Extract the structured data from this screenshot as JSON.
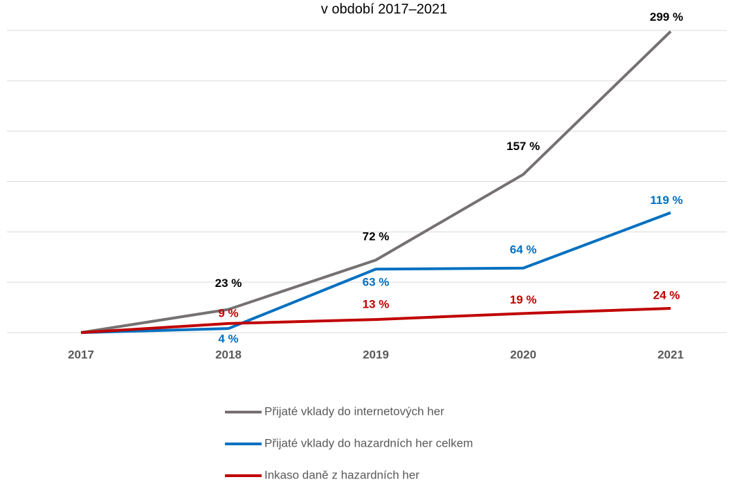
{
  "chart_data": {
    "type": "line",
    "title": "v období 2017–2021",
    "categories": [
      "2017",
      "2018",
      "2019",
      "2020",
      "2021"
    ],
    "ylim": [
      0,
      300
    ],
    "yticks": [
      0,
      50,
      100,
      150,
      200,
      250,
      300
    ],
    "grid": true,
    "series": [
      {
        "name": "Přijaté vklady do internetových her",
        "color": "#767171",
        "label_color": "#000000",
        "values": [
          0,
          23,
          72,
          157,
          299
        ],
        "value_labels": [
          null,
          "23 %",
          "72 %",
          "157 %",
          "299 %"
        ]
      },
      {
        "name": "Přijaté vklady do hazardních her celkem",
        "color": "#0070c0",
        "label_color": "#0070c0",
        "values": [
          0,
          4,
          63,
          64,
          119
        ],
        "value_labels": [
          null,
          "4 %",
          "63 %",
          "64 %",
          "119 %"
        ]
      },
      {
        "name": "Inkaso daně z hazardních her",
        "color": "#c00000",
        "label_color": "#c00000",
        "values": [
          0,
          9,
          13,
          19,
          24
        ],
        "value_labels": [
          null,
          "9 %",
          "13 %",
          "19 %",
          "24 %"
        ]
      }
    ]
  }
}
